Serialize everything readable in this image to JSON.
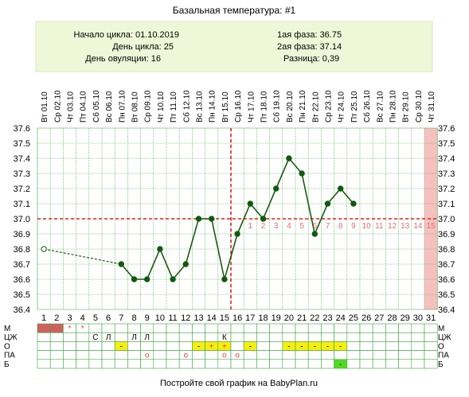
{
  "header": {
    "title": "Базальная температура: #1",
    "cycle_start": "Начало цикла: 01.10.2019",
    "cycle_day": "День цикла: 25",
    "ovulation_day": "День овуляции: 16",
    "phase1": "1ая фаза: 36.75",
    "phase2": "2ая фаза: 37.14",
    "difference": "Разница: 0,39"
  },
  "footer": {
    "text": "Постройте свой график на BabyPlan.ru"
  },
  "colors": {
    "line": "#1e5a10",
    "dots": "#0f5a0f",
    "grid": "#40a040",
    "cover_line": "#dd2222",
    "header_bg": "#eef8d8",
    "pink_column": "#f7c0c0",
    "menses": "#d06060",
    "yellow_cell": "#f5ef10",
    "green_cell": "#50dd20",
    "phase_numbers": "#e07070"
  },
  "chart_data": {
    "type": "line",
    "title": "Базальная температура: #1",
    "days": [
      1,
      2,
      3,
      4,
      5,
      6,
      7,
      8,
      9,
      10,
      11,
      12,
      13,
      14,
      15,
      16,
      17,
      18,
      19,
      20,
      21,
      22,
      23,
      24,
      25,
      26,
      27,
      28,
      29,
      30,
      31
    ],
    "dates": [
      "Вт 01.10",
      "Ср 02.10",
      "Чт 03.10",
      "Пт 04.10",
      "Сб 05.10",
      "Вс 06.10",
      "Пн 07.10",
      "Вт 08.10",
      "Ср 09.10",
      "Чт 10.10",
      "Пт 11.10",
      "Сб 12.10",
      "Вс 13.10",
      "Пн 14.10",
      "Вт 15.10",
      "Ср 16.10",
      "Чт 17.10",
      "Пт 18.10",
      "Сб 19.10",
      "Вс 20.10",
      "Пн 21.10",
      "Вт 22.10",
      "Ср 23.10",
      "Чт 24.10",
      "Пт 25.10",
      "Сб 26.10",
      "Вс 27.10",
      "Пн 28.10",
      "Вт 29.10",
      "Ср 30.10",
      "Чт 31.10"
    ],
    "ylim": [
      36.4,
      37.6
    ],
    "yticks": [
      "37.6",
      "37.5",
      "37.4",
      "37.3",
      "37.2",
      "37.1",
      "37.0",
      "36.9",
      "36.8",
      "36.7",
      "36.6",
      "36.5",
      "36.4"
    ],
    "series": [
      {
        "values": [
          36.8,
          null,
          null,
          null,
          null,
          null,
          36.7,
          36.6,
          36.6,
          36.8,
          36.6,
          36.7,
          37.0,
          37.0,
          36.6,
          36.9,
          37.1,
          37.0,
          37.2,
          37.4,
          37.3,
          36.9,
          37.1,
          37.2,
          37.1,
          null,
          null,
          null,
          null,
          null,
          null
        ]
      }
    ],
    "dashed_gap_from_day": 1,
    "dashed_gap_to_day": 7,
    "open_point_days": [
      1
    ],
    "cover_line": 37.0,
    "ovulation_day": 16,
    "highlight_day": 31,
    "phase_day_labels": [
      "1",
      "2",
      "3",
      "4",
      "5",
      "6",
      "7",
      "8",
      "9",
      "10",
      "11",
      "12",
      "13",
      "14",
      "15"
    ],
    "phase_labels_start_day": 17,
    "table": {
      "rows": [
        {
          "label": "М",
          "cells": {
            "1": "fill_menses",
            "2": "fill_menses",
            "3": "*",
            "4": "*"
          }
        },
        {
          "label": "ЦЖ",
          "cells": {
            "5": "С",
            "6": "Л",
            "8": "Л",
            "9": "Л",
            "15": "К"
          }
        },
        {
          "label": "О",
          "cells": {
            "7": "-",
            "13": "-",
            "14": "+",
            "15": "+",
            "17": "-",
            "20": "-",
            "21": "-",
            "22": "-",
            "23": "-",
            "24": "-"
          }
        },
        {
          "label": "ПА",
          "cells": {
            "9": "o",
            "12": "o",
            "15": "o",
            "16": "o"
          }
        },
        {
          "label": "Б",
          "cells": {
            "24": "-"
          }
        }
      ]
    }
  }
}
